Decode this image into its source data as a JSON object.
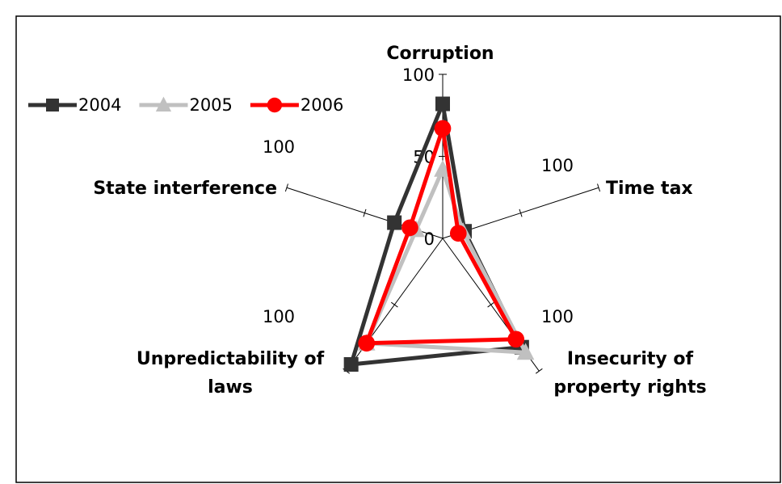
{
  "chart_data": {
    "type": "radar",
    "categories": [
      "Corruption",
      "Time tax",
      "Insecurity of property rights",
      "Unpredictability of laws",
      "State interference"
    ],
    "series": [
      {
        "name": "2004",
        "color": "#333333",
        "marker": "square",
        "values": [
          82,
          14,
          82,
          95,
          31
        ]
      },
      {
        "name": "2005",
        "color": "#c0c0c0",
        "marker": "triangle",
        "values": [
          42,
          13,
          86,
          79,
          17
        ]
      },
      {
        "name": "2006",
        "color": "#ff0000",
        "marker": "circle",
        "values": [
          67,
          10,
          76,
          79,
          21
        ]
      }
    ],
    "ylim": [
      0,
      100
    ],
    "yticks": [
      0,
      50,
      100
    ],
    "legend": "top-left"
  }
}
